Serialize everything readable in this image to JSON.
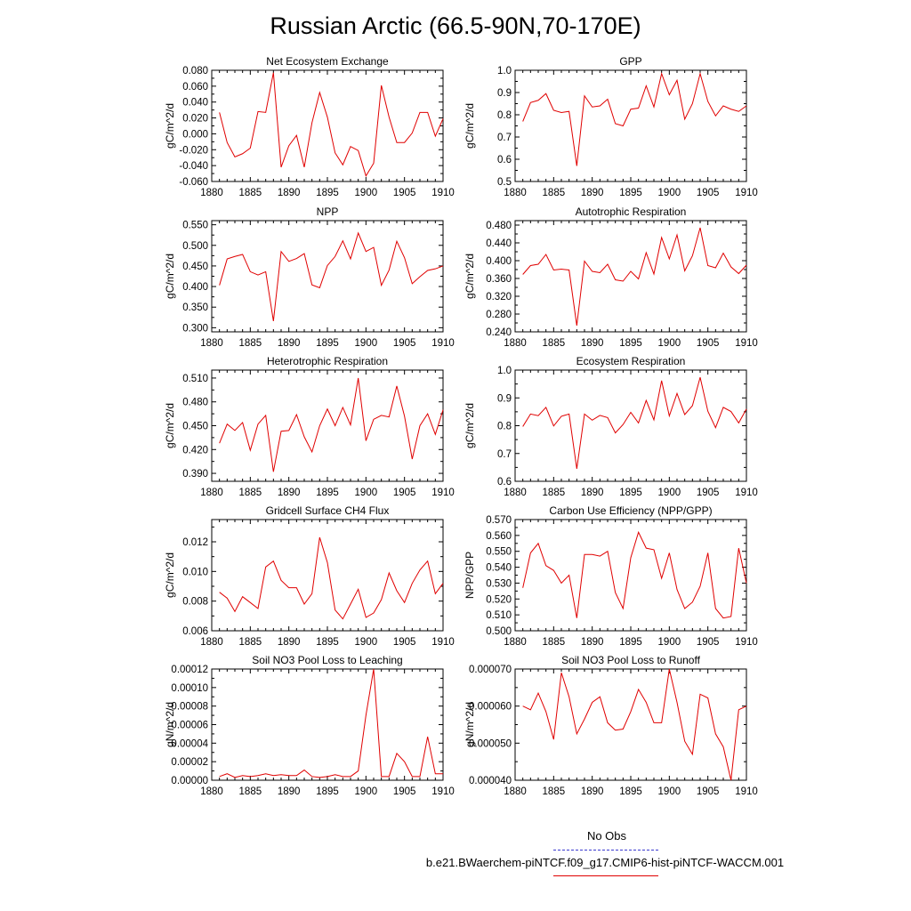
{
  "title": "Russian Arctic (66.5-90N,70-170E)",
  "legend": {
    "no_obs_label": "No Obs",
    "case_label": "b.e21.BWaerchem-piNTCF.f09_g17.CMIP6-hist-piNTCF-WACCM.001",
    "no_obs_color": "#3b3bd0",
    "case_color": "#e00000"
  },
  "chart_data": [
    {
      "type": "line",
      "title": "Net Ecosystem Exchange",
      "ylabel": "gC/m^2/d",
      "xlim": [
        1880,
        1910
      ],
      "ylim": [
        -0.06,
        0.08
      ],
      "xticks": [
        1880,
        1885,
        1890,
        1895,
        1900,
        1905,
        1910
      ],
      "yticks": [
        -0.06,
        -0.04,
        -0.02,
        0.0,
        0.02,
        0.04,
        0.06,
        0.08
      ],
      "ytick_labels": [
        "-0.060",
        "-0.040",
        "-0.020",
        "0.000",
        "0.020",
        "0.040",
        "0.060",
        "0.080"
      ],
      "x": [
        1881,
        1882,
        1883,
        1884,
        1885,
        1886,
        1887,
        1888,
        1889,
        1890,
        1891,
        1892,
        1893,
        1894,
        1895,
        1896,
        1897,
        1898,
        1899,
        1900,
        1901,
        1902,
        1903,
        1904,
        1905,
        1906,
        1907,
        1908,
        1909,
        1910
      ],
      "y": [
        0.027,
        -0.011,
        -0.029,
        -0.025,
        -0.018,
        0.028,
        0.027,
        0.077,
        -0.042,
        -0.015,
        -0.002,
        -0.042,
        0.014,
        0.052,
        0.021,
        -0.024,
        -0.039,
        -0.016,
        -0.021,
        -0.053,
        -0.037,
        0.061,
        0.021,
        -0.011,
        -0.011,
        0.001,
        0.027,
        0.027,
        -0.003,
        0.019
      ],
      "color": "#e00000"
    },
    {
      "type": "line",
      "title": "GPP",
      "ylabel": "gC/m^2/d",
      "xlim": [
        1880,
        1910
      ],
      "ylim": [
        0.5,
        1.0
      ],
      "xticks": [
        1880,
        1885,
        1890,
        1895,
        1900,
        1905,
        1910
      ],
      "yticks": [
        0.5,
        0.6,
        0.7,
        0.8,
        0.9,
        1.0
      ],
      "ytick_labels": [
        "0.5",
        "0.6",
        "0.7",
        "0.8",
        "0.9",
        "1.0"
      ],
      "x": [
        1881,
        1882,
        1883,
        1884,
        1885,
        1886,
        1887,
        1888,
        1889,
        1890,
        1891,
        1892,
        1893,
        1894,
        1895,
        1896,
        1897,
        1898,
        1899,
        1900,
        1901,
        1902,
        1903,
        1904,
        1905,
        1906,
        1907,
        1908,
        1909,
        1910
      ],
      "y": [
        0.77,
        0.855,
        0.865,
        0.895,
        0.82,
        0.81,
        0.815,
        0.57,
        0.885,
        0.835,
        0.84,
        0.87,
        0.76,
        0.75,
        0.825,
        0.83,
        0.93,
        0.835,
        0.985,
        0.89,
        0.955,
        0.78,
        0.85,
        0.985,
        0.86,
        0.795,
        0.84,
        0.825,
        0.815,
        0.84
      ],
      "color": "#e00000"
    },
    {
      "type": "line",
      "title": "NPP",
      "ylabel": "gC/m^2/d",
      "xlim": [
        1880,
        1910
      ],
      "ylim": [
        0.29,
        0.56
      ],
      "xticks": [
        1880,
        1885,
        1890,
        1895,
        1900,
        1905,
        1910
      ],
      "yticks": [
        0.3,
        0.35,
        0.4,
        0.45,
        0.5,
        0.55
      ],
      "ytick_labels": [
        "0.300",
        "0.350",
        "0.400",
        "0.450",
        "0.500",
        "0.550"
      ],
      "x": [
        1881,
        1882,
        1883,
        1884,
        1885,
        1886,
        1887,
        1888,
        1889,
        1890,
        1891,
        1892,
        1893,
        1894,
        1895,
        1896,
        1897,
        1898,
        1899,
        1900,
        1901,
        1902,
        1903,
        1904,
        1905,
        1906,
        1907,
        1908,
        1909,
        1910
      ],
      "y": [
        0.403,
        0.467,
        0.473,
        0.478,
        0.436,
        0.428,
        0.436,
        0.316,
        0.485,
        0.461,
        0.468,
        0.48,
        0.404,
        0.397,
        0.451,
        0.473,
        0.511,
        0.467,
        0.53,
        0.485,
        0.495,
        0.403,
        0.44,
        0.51,
        0.47,
        0.407,
        0.424,
        0.439,
        0.443,
        0.45
      ],
      "color": "#e00000"
    },
    {
      "type": "line",
      "title": "Autotrophic Respiration",
      "ylabel": "gC/m^2/d",
      "xlim": [
        1880,
        1910
      ],
      "ylim": [
        0.24,
        0.49
      ],
      "xticks": [
        1880,
        1885,
        1890,
        1895,
        1900,
        1905,
        1910
      ],
      "yticks": [
        0.24,
        0.28,
        0.32,
        0.36,
        0.4,
        0.44,
        0.48
      ],
      "ytick_labels": [
        "0.240",
        "0.280",
        "0.320",
        "0.360",
        "0.400",
        "0.440",
        "0.480"
      ],
      "x": [
        1881,
        1882,
        1883,
        1884,
        1885,
        1886,
        1887,
        1888,
        1889,
        1890,
        1891,
        1892,
        1893,
        1894,
        1895,
        1896,
        1897,
        1898,
        1899,
        1900,
        1901,
        1902,
        1903,
        1904,
        1905,
        1906,
        1907,
        1908,
        1909,
        1910
      ],
      "y": [
        0.369,
        0.389,
        0.392,
        0.414,
        0.379,
        0.381,
        0.379,
        0.254,
        0.399,
        0.376,
        0.373,
        0.392,
        0.357,
        0.354,
        0.376,
        0.359,
        0.418,
        0.37,
        0.452,
        0.404,
        0.458,
        0.377,
        0.411,
        0.474,
        0.389,
        0.384,
        0.417,
        0.386,
        0.371,
        0.39
      ],
      "color": "#e00000"
    },
    {
      "type": "line",
      "title": "Heterotrophic Respiration",
      "ylabel": "gC/m^2/d",
      "xlim": [
        1880,
        1910
      ],
      "ylim": [
        0.38,
        0.52
      ],
      "xticks": [
        1880,
        1885,
        1890,
        1895,
        1900,
        1905,
        1910
      ],
      "yticks": [
        0.39,
        0.42,
        0.45,
        0.48,
        0.51
      ],
      "ytick_labels": [
        "0.390",
        "0.420",
        "0.450",
        "0.480",
        "0.510"
      ],
      "x": [
        1881,
        1882,
        1883,
        1884,
        1885,
        1886,
        1887,
        1888,
        1889,
        1890,
        1891,
        1892,
        1893,
        1894,
        1895,
        1896,
        1897,
        1898,
        1899,
        1900,
        1901,
        1902,
        1903,
        1904,
        1905,
        1906,
        1907,
        1908,
        1909,
        1910
      ],
      "y": [
        0.428,
        0.452,
        0.444,
        0.454,
        0.419,
        0.452,
        0.463,
        0.392,
        0.443,
        0.444,
        0.464,
        0.436,
        0.417,
        0.45,
        0.471,
        0.45,
        0.473,
        0.451,
        0.51,
        0.431,
        0.458,
        0.463,
        0.461,
        0.5,
        0.462,
        0.408,
        0.45,
        0.465,
        0.439,
        0.47
      ],
      "color": "#e00000"
    },
    {
      "type": "line",
      "title": "Ecosystem Respiration",
      "ylabel": "gC/m^2/d",
      "xlim": [
        1880,
        1910
      ],
      "ylim": [
        0.6,
        1.0
      ],
      "xticks": [
        1880,
        1885,
        1890,
        1895,
        1900,
        1905,
        1910
      ],
      "yticks": [
        0.6,
        0.7,
        0.8,
        0.9,
        1.0
      ],
      "ytick_labels": [
        "0.6",
        "0.7",
        "0.8",
        "0.9",
        "1.0"
      ],
      "x": [
        1881,
        1882,
        1883,
        1884,
        1885,
        1886,
        1887,
        1888,
        1889,
        1890,
        1891,
        1892,
        1893,
        1894,
        1895,
        1896,
        1897,
        1898,
        1899,
        1900,
        1901,
        1902,
        1903,
        1904,
        1905,
        1906,
        1907,
        1908,
        1909,
        1910
      ],
      "y": [
        0.797,
        0.842,
        0.836,
        0.866,
        0.799,
        0.834,
        0.842,
        0.645,
        0.842,
        0.82,
        0.837,
        0.829,
        0.774,
        0.804,
        0.848,
        0.81,
        0.891,
        0.821,
        0.962,
        0.835,
        0.916,
        0.84,
        0.872,
        0.974,
        0.852,
        0.793,
        0.866,
        0.851,
        0.81,
        0.86
      ],
      "color": "#e00000"
    },
    {
      "type": "line",
      "title": "Gridcell Surface CH4 Flux",
      "ylabel": "gC/m^2/d",
      "xlim": [
        1880,
        1910
      ],
      "ylim": [
        0.006,
        0.0135
      ],
      "xticks": [
        1880,
        1885,
        1890,
        1895,
        1900,
        1905,
        1910
      ],
      "yticks": [
        0.006,
        0.008,
        0.01,
        0.012
      ],
      "ytick_labels": [
        "0.006",
        "0.008",
        "0.010",
        "0.012"
      ],
      "x": [
        1881,
        1882,
        1883,
        1884,
        1885,
        1886,
        1887,
        1888,
        1889,
        1890,
        1891,
        1892,
        1893,
        1894,
        1895,
        1896,
        1897,
        1898,
        1899,
        1900,
        1901,
        1902,
        1903,
        1904,
        1905,
        1906,
        1907,
        1908,
        1909,
        1910
      ],
      "y": [
        0.0086,
        0.0082,
        0.0073,
        0.0083,
        0.0079,
        0.0075,
        0.0103,
        0.0107,
        0.0094,
        0.0089,
        0.0089,
        0.0078,
        0.0085,
        0.0123,
        0.0106,
        0.0074,
        0.0068,
        0.0078,
        0.0088,
        0.0069,
        0.0072,
        0.0081,
        0.0099,
        0.0087,
        0.0079,
        0.0092,
        0.0101,
        0.0107,
        0.0085,
        0.0092
      ],
      "color": "#e00000"
    },
    {
      "type": "line",
      "title": "Carbon Use Efficiency (NPP/GPP)",
      "ylabel": "NPP/GPP",
      "xlim": [
        1880,
        1910
      ],
      "ylim": [
        0.5,
        0.57
      ],
      "xticks": [
        1880,
        1885,
        1890,
        1895,
        1900,
        1905,
        1910
      ],
      "yticks": [
        0.5,
        0.51,
        0.52,
        0.53,
        0.54,
        0.55,
        0.56,
        0.57
      ],
      "ytick_labels": [
        "0.500",
        "0.510",
        "0.520",
        "0.530",
        "0.540",
        "0.550",
        "0.560",
        "0.570"
      ],
      "x": [
        1881,
        1882,
        1883,
        1884,
        1885,
        1886,
        1887,
        1888,
        1889,
        1890,
        1891,
        1892,
        1893,
        1894,
        1895,
        1896,
        1897,
        1898,
        1899,
        1900,
        1901,
        1902,
        1903,
        1904,
        1905,
        1906,
        1907,
        1908,
        1909,
        1910
      ],
      "y": [
        0.527,
        0.549,
        0.555,
        0.541,
        0.538,
        0.53,
        0.535,
        0.508,
        0.548,
        0.548,
        0.547,
        0.55,
        0.524,
        0.514,
        0.546,
        0.562,
        0.552,
        0.551,
        0.533,
        0.549,
        0.526,
        0.514,
        0.518,
        0.528,
        0.549,
        0.514,
        0.508,
        0.509,
        0.552,
        0.53
      ],
      "color": "#e00000"
    },
    {
      "type": "line",
      "title": "Soil NO3 Pool Loss to Leaching",
      "ylabel": "gN/m^2/d",
      "xlim": [
        1880,
        1910
      ],
      "ylim": [
        0.0,
        0.00012
      ],
      "xticks": [
        1880,
        1885,
        1890,
        1895,
        1900,
        1905,
        1910
      ],
      "yticks": [
        0.0,
        2e-05,
        4e-05,
        6e-05,
        8e-05,
        0.0001,
        0.00012
      ],
      "ytick_labels": [
        "0.00000",
        "0.00002",
        "0.00004",
        "0.00006",
        "0.00008",
        "0.00010",
        "0.00012"
      ],
      "x": [
        1881,
        1882,
        1883,
        1884,
        1885,
        1886,
        1887,
        1888,
        1889,
        1890,
        1891,
        1892,
        1893,
        1894,
        1895,
        1896,
        1897,
        1898,
        1899,
        1900,
        1901,
        1902,
        1903,
        1904,
        1905,
        1906,
        1907,
        1908,
        1909,
        1910
      ],
      "y": [
        4e-06,
        7e-06,
        3e-06,
        5e-06,
        4e-06,
        5e-06,
        7e-06,
        5e-06,
        6e-06,
        5e-06,
        5e-06,
        1.1e-05,
        4e-06,
        3e-06,
        4e-06,
        6e-06,
        4e-06,
        4e-06,
        1e-05,
        7e-05,
        0.00012,
        4e-06,
        4e-06,
        2.9e-05,
        2e-05,
        4e-06,
        4e-06,
        4.7e-05,
        7e-06,
        7e-06
      ],
      "color": "#e00000"
    },
    {
      "type": "line",
      "title": "Soil NO3 Pool Loss to Runoff",
      "ylabel": "gN/m^2/d",
      "xlim": [
        1880,
        1910
      ],
      "ylim": [
        4e-05,
        7e-05
      ],
      "xticks": [
        1880,
        1885,
        1890,
        1895,
        1900,
        1905,
        1910
      ],
      "yticks": [
        4e-05,
        5e-05,
        6e-05,
        7e-05
      ],
      "ytick_labels": [
        "0.000040",
        "0.000050",
        "0.000060",
        "0.000070"
      ],
      "x": [
        1881,
        1882,
        1883,
        1884,
        1885,
        1886,
        1887,
        1888,
        1889,
        1890,
        1891,
        1892,
        1893,
        1894,
        1895,
        1896,
        1897,
        1898,
        1899,
        1900,
        1901,
        1902,
        1903,
        1904,
        1905,
        1906,
        1907,
        1908,
        1909,
        1910
      ],
      "y": [
        6e-05,
        5.9e-05,
        6.35e-05,
        5.85e-05,
        5.1e-05,
        6.9e-05,
        6.25e-05,
        5.25e-05,
        5.65e-05,
        6.1e-05,
        6.25e-05,
        5.55e-05,
        5.35e-05,
        5.38e-05,
        5.85e-05,
        6.45e-05,
        6.1e-05,
        5.55e-05,
        5.55e-05,
        7e-05,
        6.1e-05,
        5.05e-05,
        4.7e-05,
        6.32e-05,
        6.22e-05,
        5.25e-05,
        4.9e-05,
        4e-05,
        5.9e-05,
        6e-05
      ],
      "color": "#e00000"
    }
  ]
}
